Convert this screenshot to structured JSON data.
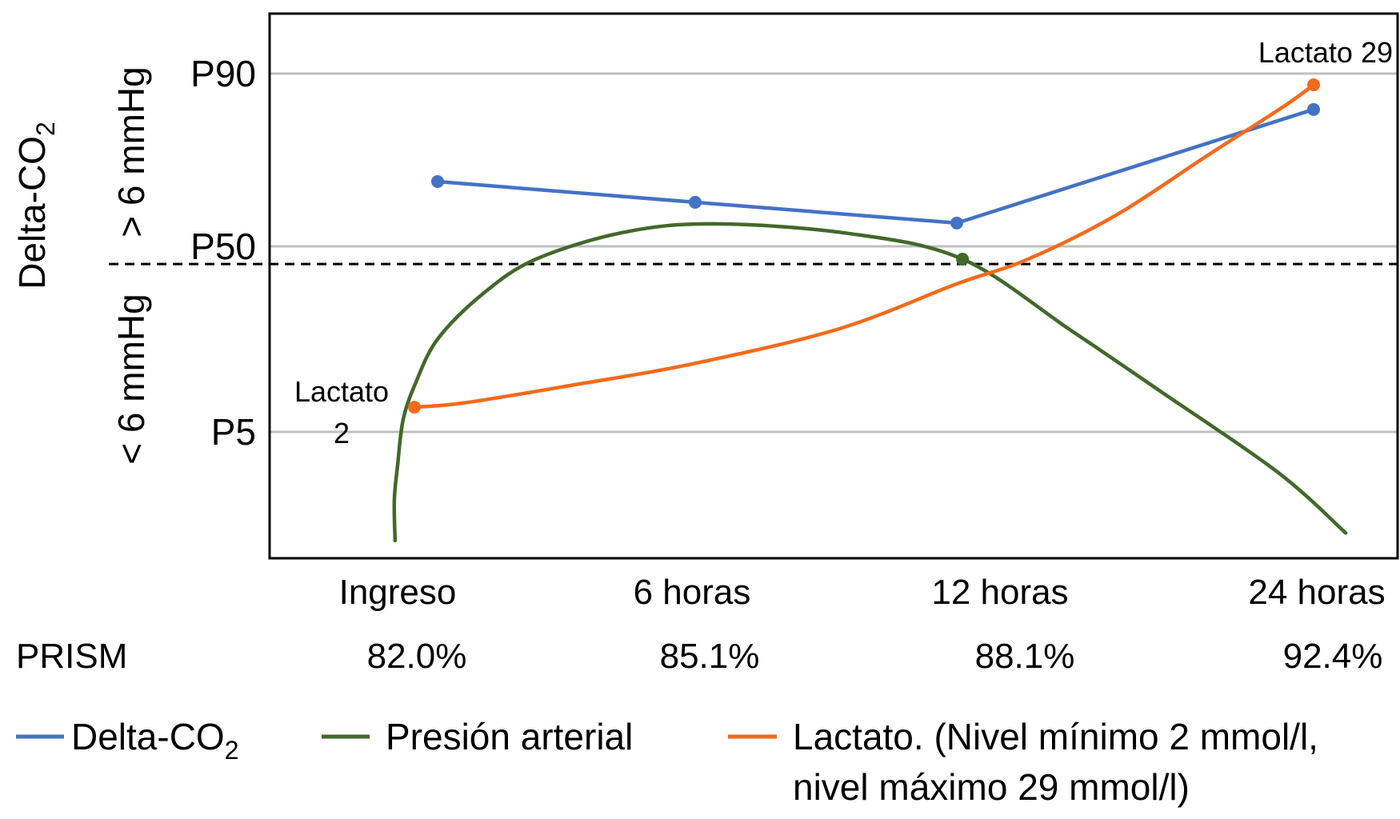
{
  "chart_data": {
    "type": "line",
    "title": "",
    "ylabel": {
      "base": "Delta-CO",
      "sub": "2"
    },
    "y_region_labels": {
      "above": "> 6 mmHg",
      "below": "< 6 mmHg"
    },
    "y_ticks": [
      {
        "label": "P90",
        "value": 90
      },
      {
        "label": "P50",
        "value": 50
      },
      {
        "label": "P5",
        "value": 5
      }
    ],
    "ylim": [
      0,
      100
    ],
    "threshold": {
      "value": 45.7,
      "style": "dashed"
    },
    "categories": [
      "Ingreso",
      "6 horas",
      "12 horas",
      "24 horas"
    ],
    "prism": {
      "label": "PRISM",
      "values": [
        "82.0%",
        "85.1%",
        "88.1%",
        "92.4%"
      ]
    },
    "series": [
      {
        "name": "Delta-CO2",
        "legend": {
          "base": "Delta-CO",
          "sub": "2"
        },
        "color": "#4472c4",
        "smooth": false,
        "points": [
          [
            0,
            65.0
          ],
          [
            1,
            60.2
          ],
          [
            2,
            55.4
          ],
          [
            3,
            81.7
          ]
        ],
        "markers": [
          [
            0,
            65.0
          ],
          [
            1,
            60.2
          ],
          [
            2,
            55.4
          ],
          [
            3,
            81.7
          ]
        ]
      },
      {
        "name": "Presión arterial",
        "legend": {
          "base": "Presión arterial",
          "sub": ""
        },
        "color": "#43682b",
        "smooth": true,
        "points": [
          [
            -0.165,
            0.7
          ],
          [
            -0.168,
            2.3
          ],
          [
            -0.155,
            3.7
          ],
          [
            -0.134,
            7.9
          ],
          [
            -0.087,
            16.6
          ],
          [
            0,
            27.5
          ],
          [
            0.174,
            38.4
          ],
          [
            0.382,
            46.9
          ],
          [
            0.727,
            53.3
          ],
          [
            1.073,
            55.2
          ],
          [
            1.584,
            53.0
          ],
          [
            2.016,
            46.9
          ],
          [
            2.32,
            29.6
          ],
          [
            2.57,
            14.9
          ],
          [
            2.9,
            3.4
          ],
          [
            3.09,
            1.0
          ]
        ],
        "markers": [
          [
            2.016,
            46.9
          ]
        ]
      },
      {
        "name": "Lactato",
        "legend": {
          "line1": "Lactato. (Nivel mínimo 2 mmol/l,",
          "line2": "nivel máximo 29 mmol/l)"
        },
        "color": "#f26b1d",
        "smooth": true,
        "points": [
          [
            -0.09,
            11.0
          ],
          [
            0.1,
            12.0
          ],
          [
            0.52,
            16.3
          ],
          [
            0.99,
            21.5
          ],
          [
            1.55,
            30.0
          ],
          [
            2.0,
            40.9
          ],
          [
            2.2,
            46.9
          ],
          [
            2.45,
            57.4
          ],
          [
            2.7,
            70.9
          ],
          [
            2.92,
            82.6
          ],
          [
            3.0,
            87.4
          ]
        ],
        "markers": [
          [
            -0.09,
            11.0
          ],
          [
            3.0,
            87.4
          ]
        ]
      }
    ],
    "annotations": [
      {
        "text": "Lactato 29"
      },
      {
        "text_line1": "Lactato",
        "text_line2": "2"
      }
    ],
    "grid": true,
    "legend_position": "bottom"
  }
}
